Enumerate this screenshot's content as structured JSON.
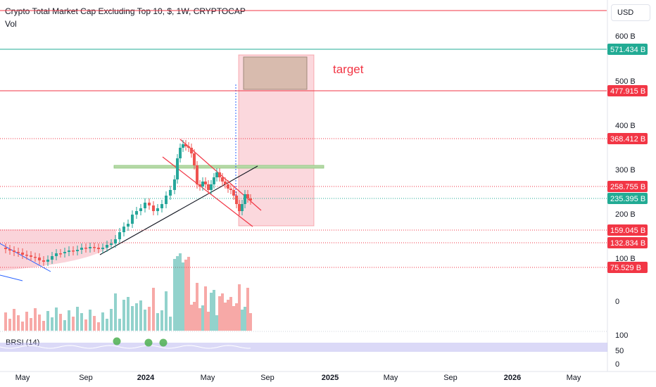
{
  "chart_data": {
    "type": "candlestick",
    "title": "Crypto Total Market Cap Excluding Top 10, $, 1W, CRYPTOCAP",
    "volume_label": "Vol",
    "indicator_label": "BRSI (14)",
    "currency": "USD",
    "y_ticks": [
      "600 B",
      "500 B",
      "400 B",
      "300 B",
      "200 B",
      "100 B"
    ],
    "indicator_ticks": [
      "100",
      "50",
      "0"
    ],
    "volume_tick": "0",
    "x_ticks": [
      "May",
      "Sep",
      "2024",
      "May",
      "Sep",
      "2025",
      "May",
      "Sep",
      "2026",
      "May"
    ],
    "annotation": "target",
    "price_levels": [
      {
        "label": "571.434 B",
        "color": "#22ab94",
        "line": "solid"
      },
      {
        "label": "477.915 B",
        "color": "#f23645",
        "line": "solid"
      },
      {
        "label": "368.412 B",
        "color": "#f23645",
        "line": "dotted"
      },
      {
        "label": "258.755 B",
        "color": "#f23645",
        "line": "dotted"
      },
      {
        "label": "235.395 B",
        "color": "#22ab94",
        "line": "dotted"
      },
      {
        "label": "159.045 B",
        "color": "#f23645",
        "line": "dotted"
      },
      {
        "label": "132.834 B",
        "color": "#f23645",
        "line": "dotted"
      },
      {
        "label": "75.529 B",
        "color": "#f23645",
        "line": "dotted"
      }
    ],
    "colors": {
      "up": "#26a69a",
      "down": "#ef5350",
      "level_red": "#f23645",
      "level_green": "#22ab94"
    }
  }
}
